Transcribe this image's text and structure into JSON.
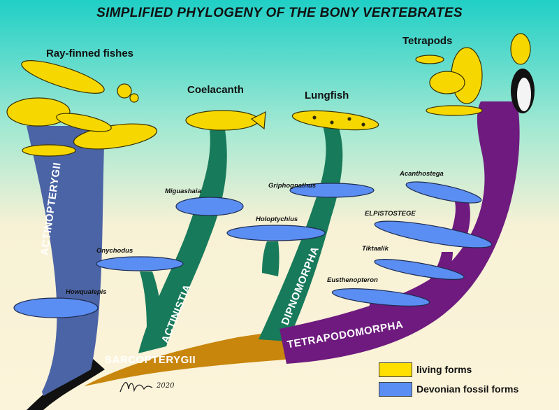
{
  "title": "SIMPLIFIED PHYLOGENY OF THE BONY VERTEBRATES",
  "colors": {
    "background_top": "#22d3c6",
    "background_bottom": "#fbf3d6",
    "actinopterygii": "#4b64a6",
    "sarcopterygii": "#c8860d",
    "actinistia": "#177a5a",
    "tetrapodomorpha": "#6e1a7e",
    "living_forms": "#ffdf00",
    "devonian_fossil_forms": "#5b8ef2"
  },
  "groups": {
    "ray_finned": "Ray-finned fishes",
    "coelacanth": "Coelacanth",
    "lungfish": "Lungfish",
    "tetrapods": "Tetrapods"
  },
  "clades": {
    "actinopterygii": "ACTINOPTERYGII",
    "sarcopterygii": "SARCOPTERYGII",
    "actinistia": "ACTINISTIA",
    "dipnomorpha": "DIPNOMORPHA",
    "tetrapodomorpha": "TETRAPODOMORPHA"
  },
  "fossils": {
    "howqualepis": "Howqualepis",
    "onychodus": "Onychodus",
    "miguashaia": "Miguashaia",
    "griphognathus": "Griphognathus",
    "holoptychius": "Holoptychius",
    "eusthenopteron": "Eusthenopteron",
    "tiktaalik": "Tiktaalik",
    "elpistostege": "ELPISTOSTEGE",
    "acanthostega": "Acanthostega"
  },
  "legend": {
    "living": "living forms",
    "fossil": "Devonian fossil forms"
  },
  "signature": "2020"
}
